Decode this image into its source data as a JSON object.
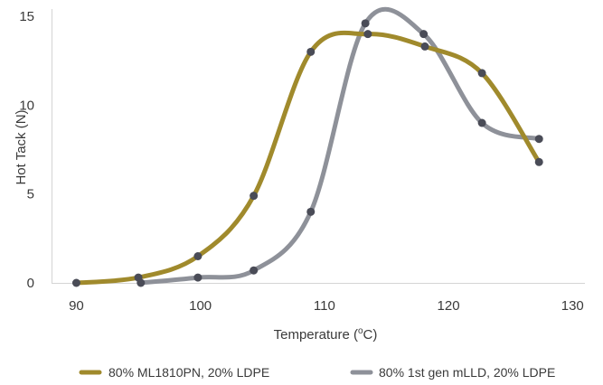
{
  "chart_data": {
    "type": "line",
    "xlabel_main": "Temperature (",
    "xlabel_sup": "o",
    "xlabel_end": "C)",
    "ylabel": "Hot Tack  (N)",
    "xlim": [
      88,
      131
    ],
    "ylim": [
      0,
      15
    ],
    "x_ticks": [
      "90",
      "100",
      "110",
      "120",
      "130"
    ],
    "x_tick_values": [
      90,
      100,
      110,
      120,
      130
    ],
    "y_ticks": [
      "0",
      "5",
      "10",
      "15"
    ],
    "y_tick_values": [
      0,
      5,
      10,
      15
    ],
    "grid": false,
    "legend_position": "bottom",
    "marker_color": "#4a4c57",
    "series": [
      {
        "name": "80% ML1810PN, 20% LDPE",
        "color": "#a08a2c",
        "points": [
          {
            "x": 90,
            "y": 0
          },
          {
            "x": 95,
            "y": 0.3
          },
          {
            "x": 99.8,
            "y": 1.5
          },
          {
            "x": 104.3,
            "y": 4.9
          },
          {
            "x": 108.9,
            "y": 13.0
          },
          {
            "x": 113.5,
            "y": 14.0
          },
          {
            "x": 118.1,
            "y": 13.3
          },
          {
            "x": 122.7,
            "y": 11.8
          },
          {
            "x": 127.3,
            "y": 6.8
          }
        ]
      },
      {
        "name": "80% 1st gen mLLD, 20% LDPE",
        "color": "#8e9199",
        "points": [
          {
            "x": 95.2,
            "y": 0
          },
          {
            "x": 99.8,
            "y": 0.3
          },
          {
            "x": 104.3,
            "y": 0.7
          },
          {
            "x": 108.9,
            "y": 4.0
          },
          {
            "x": 113.3,
            "y": 14.6
          },
          {
            "x": 118.0,
            "y": 14.0
          },
          {
            "x": 122.7,
            "y": 9.0
          },
          {
            "x": 127.3,
            "y": 8.1
          }
        ]
      }
    ]
  }
}
